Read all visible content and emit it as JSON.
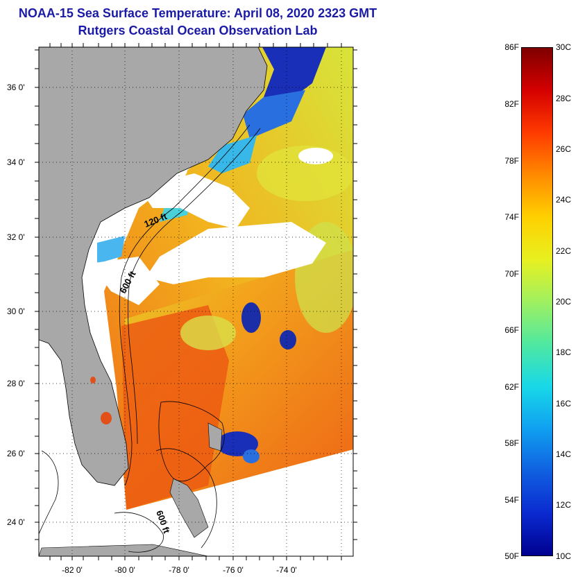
{
  "title": {
    "line1": "NOAA-15 Sea Surface Temperature:  April 08, 2020 2323 GMT",
    "line2": "Rutgers Coastal Ocean Observation Lab"
  },
  "map": {
    "lat_labels": [
      "36 0'",
      "34 0'",
      "32 0'",
      "30 0'",
      "28 0'",
      "26 0'",
      "24 0'"
    ],
    "lon_labels": [
      "-82 0'",
      "-80 0'",
      "-78 0'",
      "-76 0'",
      "-74 0'"
    ],
    "isobath_labels": [
      "120 ft",
      "600 ft",
      "600 ft"
    ],
    "colors": {
      "land": "#a8a8a8",
      "cloud": "#ffffff",
      "border": "#000000"
    }
  },
  "colorbar": {
    "fahrenheit": [
      "86F",
      "82F",
      "78F",
      "74F",
      "70F",
      "66F",
      "62F",
      "58F",
      "54F",
      "50F"
    ],
    "celsius": [
      "30C",
      "28C",
      "26C",
      "24C",
      "22C",
      "20C",
      "18C",
      "16C",
      "14C",
      "12C",
      "10C"
    ]
  }
}
